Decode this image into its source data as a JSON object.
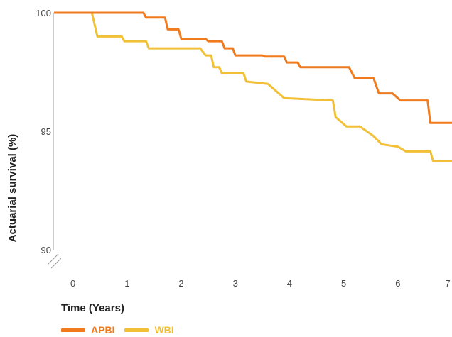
{
  "chart_data": {
    "type": "line",
    "step": true,
    "xlabel": "Time (Years)",
    "ylabel": "Actuarial survival (%)",
    "xlim": [
      -0.35,
      7.0
    ],
    "ylim": [
      90,
      100
    ],
    "y_axis_break": true,
    "grid": false,
    "legend_position": "bottom-left",
    "x_ticks": [
      {
        "value": 0,
        "label": "0"
      },
      {
        "value": 1,
        "label": "1"
      },
      {
        "value": 2,
        "label": "2"
      },
      {
        "value": 3,
        "label": "3"
      },
      {
        "value": 4,
        "label": "4"
      },
      {
        "value": 5,
        "label": "5"
      },
      {
        "value": 6,
        "label": "6"
      },
      {
        "value": 7,
        "label": "7"
      }
    ],
    "y_ticks": [
      {
        "value": 100,
        "label": "100"
      },
      {
        "value": 95,
        "label": "95"
      },
      {
        "value": 90,
        "label": "90"
      }
    ],
    "series": [
      {
        "name": "APBI",
        "color": "#f07a1e",
        "points": [
          [
            -0.35,
            100.0
          ],
          [
            1.3,
            100.0
          ],
          [
            1.35,
            99.8
          ],
          [
            1.7,
            99.8
          ],
          [
            1.75,
            99.3
          ],
          [
            1.95,
            99.3
          ],
          [
            2.0,
            98.9
          ],
          [
            2.45,
            98.9
          ],
          [
            2.5,
            98.8
          ],
          [
            2.75,
            98.8
          ],
          [
            2.8,
            98.5
          ],
          [
            2.95,
            98.5
          ],
          [
            3.0,
            98.2
          ],
          [
            3.5,
            98.2
          ],
          [
            3.55,
            98.15
          ],
          [
            3.9,
            98.15
          ],
          [
            3.95,
            97.9
          ],
          [
            4.15,
            97.9
          ],
          [
            4.2,
            97.7
          ],
          [
            5.1,
            97.7
          ],
          [
            5.2,
            97.25
          ],
          [
            5.55,
            97.25
          ],
          [
            5.65,
            96.6
          ],
          [
            5.9,
            96.6
          ],
          [
            6.05,
            96.3
          ],
          [
            6.55,
            96.3
          ],
          [
            6.6,
            95.35
          ],
          [
            7.0,
            95.35
          ]
        ]
      },
      {
        "name": "WBI",
        "color": "#f2c037",
        "points": [
          [
            -0.35,
            100.0
          ],
          [
            0.35,
            100.0
          ],
          [
            0.45,
            99.0
          ],
          [
            0.9,
            99.0
          ],
          [
            0.95,
            98.8
          ],
          [
            1.35,
            98.8
          ],
          [
            1.4,
            98.5
          ],
          [
            2.35,
            98.5
          ],
          [
            2.45,
            98.2
          ],
          [
            2.55,
            98.2
          ],
          [
            2.6,
            97.7
          ],
          [
            2.7,
            97.7
          ],
          [
            2.75,
            97.45
          ],
          [
            3.15,
            97.45
          ],
          [
            3.2,
            97.1
          ],
          [
            3.6,
            97.0
          ],
          [
            3.9,
            96.4
          ],
          [
            4.8,
            96.3
          ],
          [
            4.85,
            95.6
          ],
          [
            5.05,
            95.2
          ],
          [
            5.3,
            95.2
          ],
          [
            5.55,
            94.8
          ],
          [
            5.7,
            94.45
          ],
          [
            6.0,
            94.35
          ],
          [
            6.15,
            94.15
          ],
          [
            6.6,
            94.15
          ],
          [
            6.65,
            93.75
          ],
          [
            7.0,
            93.75
          ]
        ]
      }
    ]
  }
}
